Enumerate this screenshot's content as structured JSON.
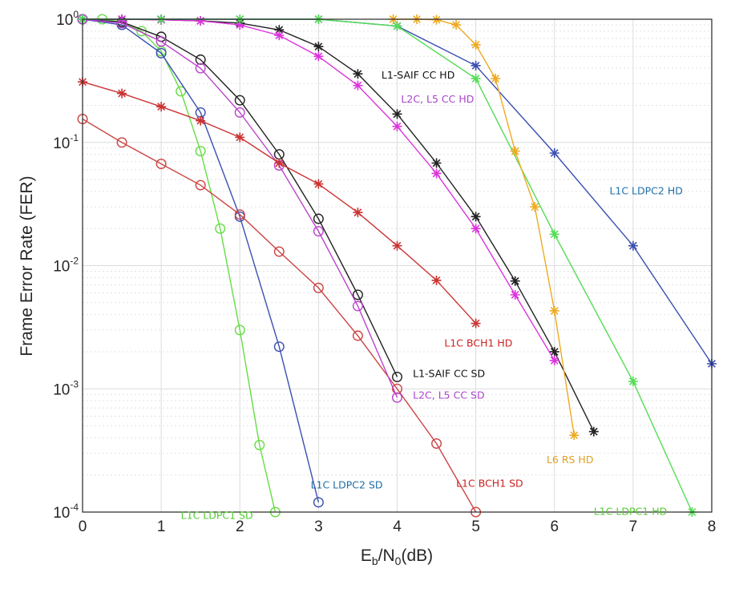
{
  "chart_data": {
    "type": "line",
    "xlabel": {
      "main": "E",
      "sub1": "b",
      "mid": "/N",
      "sub2": "0",
      "tail": "(dB)"
    },
    "ylabel": "Frame Error Rate (FER)",
    "xlim": [
      0,
      8
    ],
    "ylim": [
      0.0001,
      1
    ],
    "yscale": "log",
    "x_ticks": [
      "0",
      "1",
      "2",
      "3",
      "4",
      "5",
      "6",
      "7",
      "8"
    ],
    "y_ticks": [
      {
        "base": "10",
        "exp": "0"
      },
      {
        "base": "10",
        "exp": "-1"
      },
      {
        "base": "10",
        "exp": "-2"
      },
      {
        "base": "10",
        "exp": "-3"
      },
      {
        "base": "10",
        "exp": "-4"
      }
    ],
    "grid": true,
    "series": [
      {
        "name": "L1C LDPC1 SD",
        "color": "#66dd44",
        "marker": "circle",
        "x": [
          0,
          0.25,
          0.5,
          0.75,
          1.0,
          1.25,
          1.5,
          1.75,
          2.0,
          2.25,
          2.45
        ],
        "y": [
          1.0,
          1.0,
          0.95,
          0.8,
          0.55,
          0.26,
          0.085,
          0.02,
          0.003,
          0.00035,
          0.0001
        ]
      },
      {
        "name": "L1C LDPC2 SD",
        "color": "#3b4fb0",
        "marker": "circle",
        "x": [
          0,
          0.5,
          1.0,
          1.5,
          2.0,
          2.5,
          3.0
        ],
        "y": [
          1.0,
          0.9,
          0.53,
          0.175,
          0.025,
          0.0022,
          0.00012
        ]
      },
      {
        "name": "L1C BCH1 SD",
        "color": "#cc4444",
        "marker": "circle",
        "x": [
          0,
          0.5,
          1.0,
          1.5,
          2.0,
          2.5,
          3.0,
          3.5,
          4.0,
          4.5,
          5.0
        ],
        "y": [
          0.155,
          0.1,
          0.067,
          0.045,
          0.026,
          0.013,
          0.0066,
          0.0027,
          0.001,
          0.00036,
          0.0001
        ]
      },
      {
        "name": "L1-SAIF CC SD",
        "color": "#222222",
        "marker": "circle",
        "x": [
          0,
          0.5,
          1.0,
          1.5,
          2.0,
          2.5,
          3.0,
          3.5,
          4.0
        ],
        "y": [
          1.0,
          0.95,
          0.72,
          0.47,
          0.22,
          0.08,
          0.024,
          0.0058,
          0.00125
        ]
      },
      {
        "name": "L2C, L5 CC SD",
        "color": "#bb44cc",
        "marker": "circle",
        "x": [
          0,
          0.5,
          1.0,
          1.5,
          2.0,
          2.5,
          3.0,
          3.5,
          4.0
        ],
        "y": [
          1.0,
          0.93,
          0.66,
          0.4,
          0.175,
          0.065,
          0.019,
          0.0047,
          0.00085
        ]
      },
      {
        "name": "L1C BCH1 HD",
        "color": "#cc3333",
        "marker": "star",
        "x": [
          0,
          0.5,
          1.0,
          1.5,
          2.0,
          2.5,
          3.0,
          3.5,
          4.0,
          4.5,
          5.0
        ],
        "y": [
          0.31,
          0.25,
          0.195,
          0.15,
          0.11,
          0.068,
          0.046,
          0.027,
          0.0145,
          0.0076,
          0.0034
        ]
      },
      {
        "name": "L1-SAIF CC HD",
        "color": "#222222",
        "marker": "star",
        "x": [
          0,
          0.5,
          1.0,
          1.5,
          2.0,
          2.5,
          3.0,
          3.5,
          4.0,
          4.5,
          5.0,
          5.5,
          6.0,
          6.5
        ],
        "y": [
          1.0,
          1.0,
          0.99,
          0.97,
          0.93,
          0.82,
          0.6,
          0.36,
          0.17,
          0.068,
          0.025,
          0.0075,
          0.002,
          0.00045
        ]
      },
      {
        "name": "L2C, L5 CC HD",
        "color": "#dd33dd",
        "marker": "star",
        "x": [
          0,
          0.5,
          1.0,
          1.5,
          2.0,
          2.5,
          3.0,
          3.5,
          4.0,
          4.5,
          5.0,
          5.5,
          6.0
        ],
        "y": [
          1.0,
          1.0,
          0.99,
          0.97,
          0.9,
          0.74,
          0.5,
          0.29,
          0.135,
          0.056,
          0.02,
          0.0058,
          0.0017
        ]
      },
      {
        "name": "L1C LDPC2 HD",
        "color": "#3b4fb0",
        "marker": "star",
        "x": [
          0,
          1.0,
          2.0,
          3.0,
          4.0,
          5.0,
          6.0,
          7.0,
          8.0
        ],
        "y": [
          1.0,
          1.0,
          1.0,
          1.0,
          0.88,
          0.42,
          0.082,
          0.0145,
          0.0016
        ]
      },
      {
        "name": "L1C LDPC1 HD",
        "color": "#55dd55",
        "marker": "star",
        "x": [
          0,
          1.0,
          2.0,
          3.0,
          4.0,
          5.0,
          6.0,
          7.0,
          7.75
        ],
        "y": [
          1.0,
          1.0,
          1.0,
          1.0,
          0.88,
          0.33,
          0.018,
          0.00115,
          0.0001
        ]
      },
      {
        "name": "L6 RS HD",
        "color": "#eeaa22",
        "marker": "star",
        "x": [
          3.95,
          4.25,
          4.5,
          4.75,
          5.0,
          5.25,
          5.5,
          5.75,
          6.0,
          6.25
        ],
        "y": [
          1.0,
          1.0,
          0.99,
          0.9,
          0.62,
          0.33,
          0.085,
          0.03,
          0.0043,
          0.00042
        ]
      }
    ],
    "annotations": [
      {
        "text": "L1-SAIF CC HD",
        "color": "#111111",
        "at_x": 3.8,
        "at_y": 0.33
      },
      {
        "text": "L2C, L5 CC HD",
        "color": "#aa44cc",
        "at_x": 4.05,
        "at_y": 0.21
      },
      {
        "text": "L1C LDPC2 HD",
        "color": "#1f6fa8",
        "at_x": 6.7,
        "at_y": 0.038
      },
      {
        "text": "L1C BCH1 HD",
        "color": "#cc2222",
        "at_x": 4.6,
        "at_y": 0.0022
      },
      {
        "text": "L1-SAIF CC SD",
        "color": "#111111",
        "at_x": 4.2,
        "at_y": 0.00125
      },
      {
        "text": "L2C, L5 CC SD",
        "color": "#aa44cc",
        "at_x": 4.2,
        "at_y": 0.00083
      },
      {
        "text": "L6 RS HD",
        "color": "#e0a020",
        "at_x": 5.9,
        "at_y": 0.00025
      },
      {
        "text": "L1C BCH1 SD",
        "color": "#cc2222",
        "at_x": 4.75,
        "at_y": 0.00016
      },
      {
        "text": "L1C LDPC2 SD",
        "color": "#1f6fa8",
        "at_x": 2.9,
        "at_y": 0.000156
      },
      {
        "text": "L1C LDPC1 HD",
        "color": "#55cc33",
        "at_x": 6.5,
        "at_y": 9.5e-05
      },
      {
        "text": "L1C LDPC1 SD",
        "color": "#55cc33",
        "at_x": 1.25,
        "at_y": 8.8e-05
      }
    ]
  }
}
